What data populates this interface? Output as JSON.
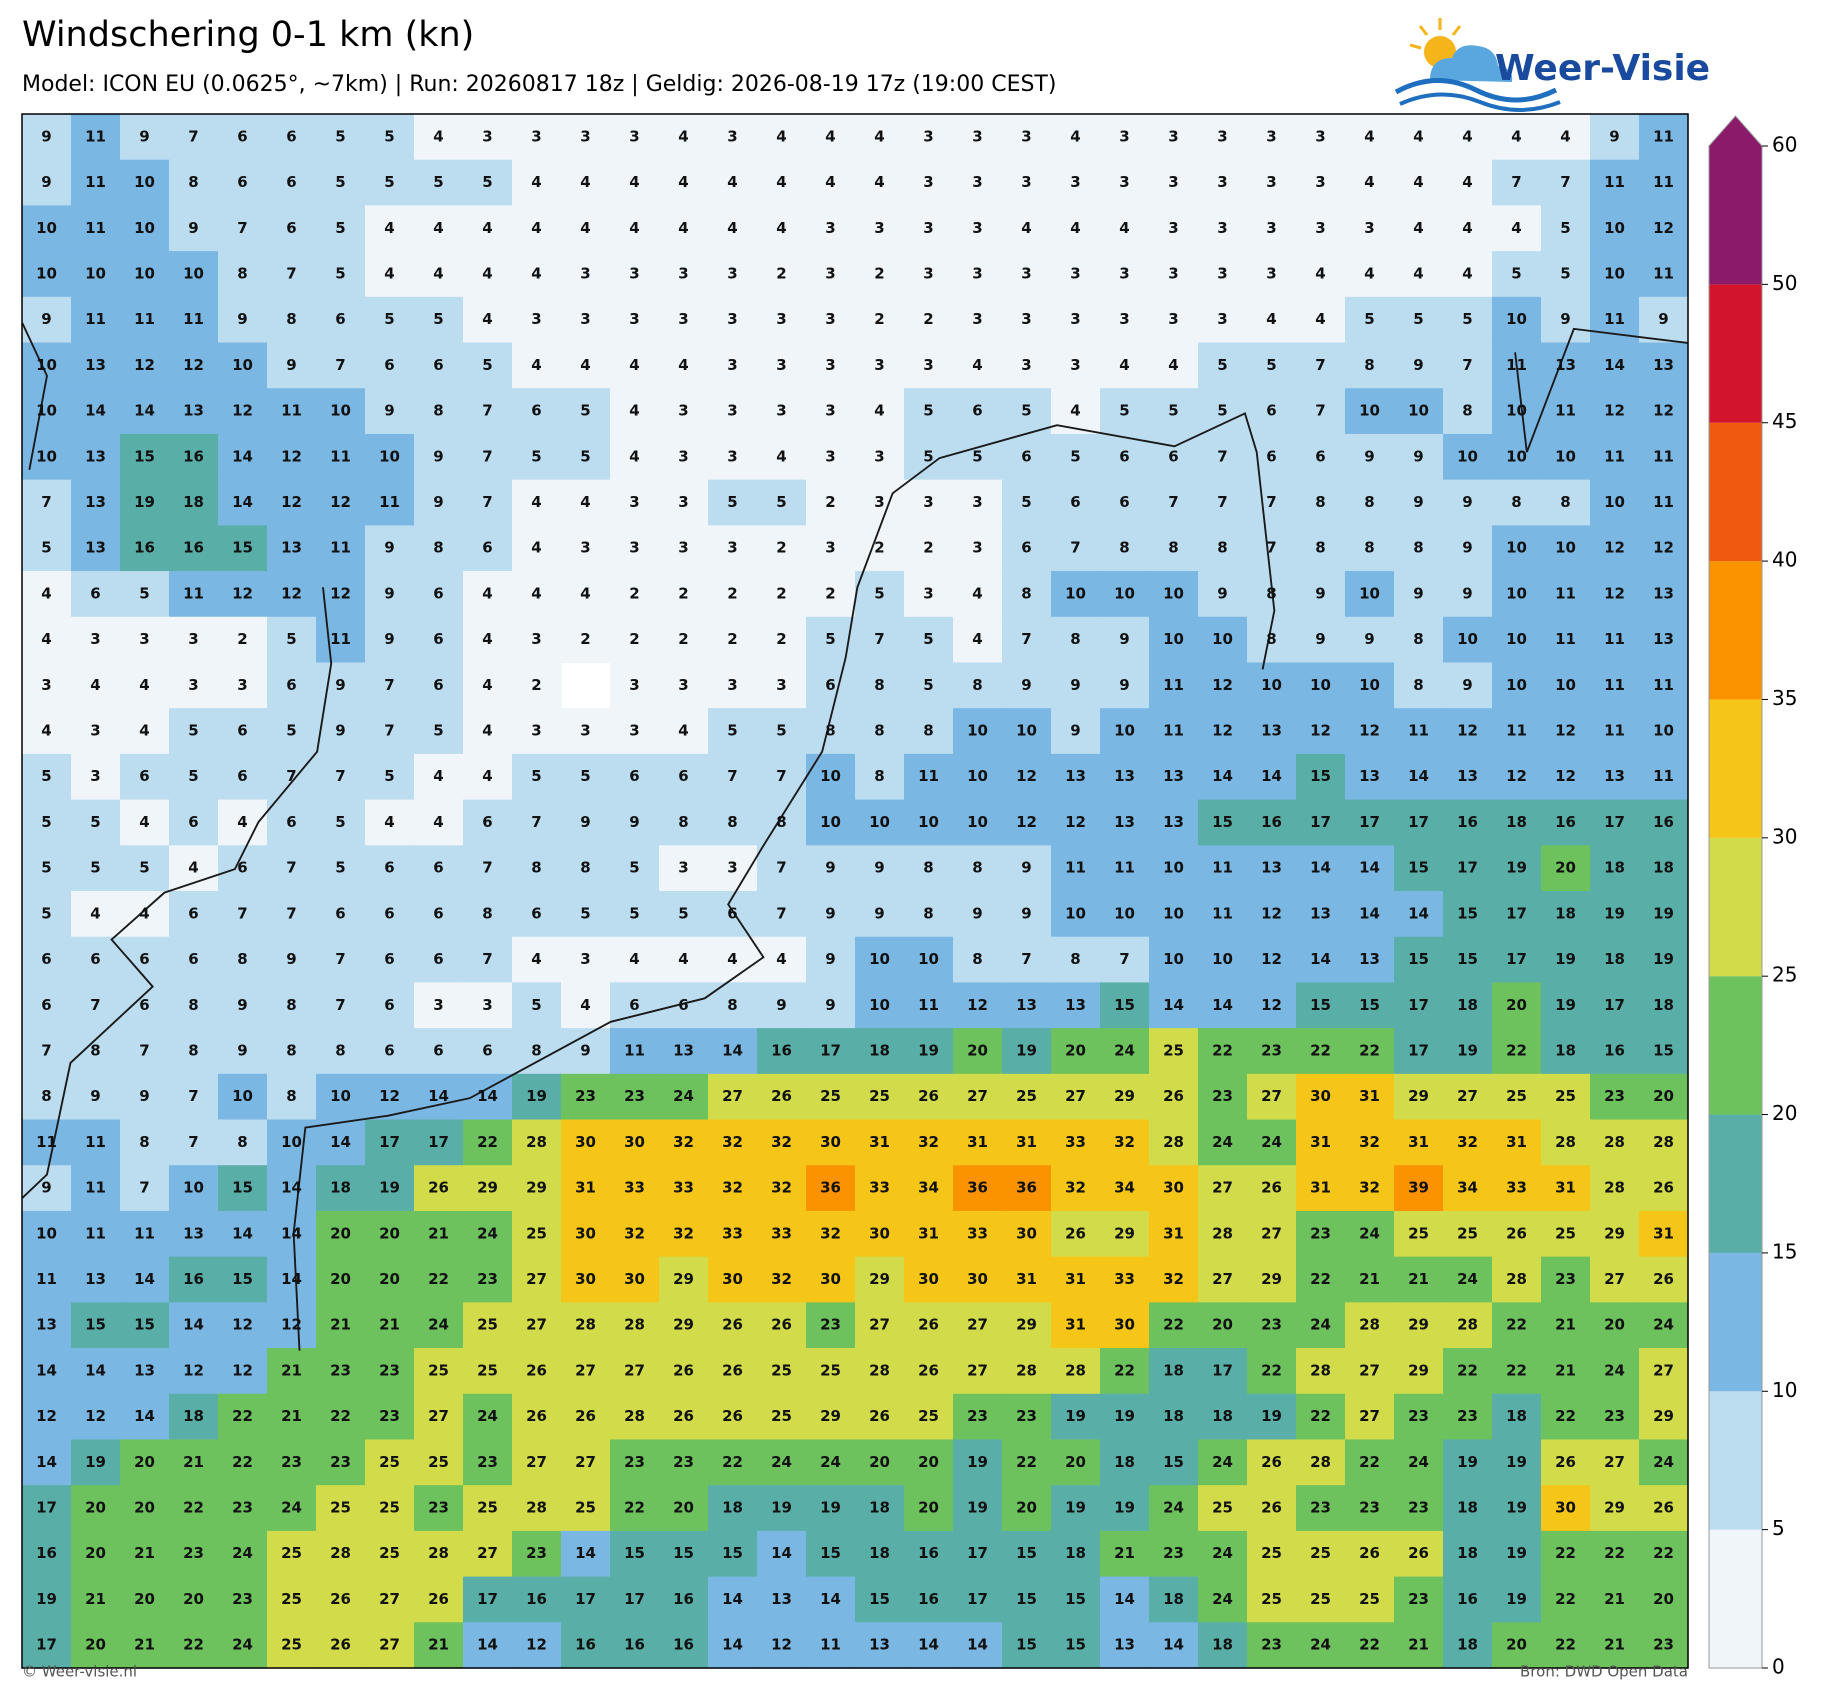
{
  "header": {
    "title": "Windschering 0-1 km (kn)",
    "subtitle": "Model: ICON EU (0.0625°, ~7km)  |  Run: 20260817 18z  |  Geldig: 2026-08-19 17z (19:00 CEST)",
    "logo": "Weer-Visie"
  },
  "footer": {
    "left": "© Weer-visie.nl",
    "right": "Bron: DWD Open Data"
  },
  "colorbar": {
    "levels": [
      0,
      5,
      10,
      15,
      20,
      25,
      30,
      35,
      40,
      45,
      50,
      60
    ],
    "colors": [
      "#f0f5fa",
      "#bcdcf0",
      "#7bb7e3",
      "#5aaea8",
      "#6ec25e",
      "#d2dc4a",
      "#f5c518",
      "#fb9200",
      "#f05a10",
      "#d2142d",
      "#8b1a6a"
    ]
  },
  "grid": {
    "rows": [
      [
        9,
        11,
        9,
        7,
        6,
        6,
        5,
        5,
        4,
        3,
        3,
        3,
        3,
        4,
        3,
        4,
        4,
        4,
        3,
        3,
        3,
        4,
        3,
        3,
        3,
        3,
        3,
        4,
        4,
        4,
        4,
        4,
        9,
        11
      ],
      [
        9,
        11,
        10,
        8,
        6,
        6,
        5,
        5,
        5,
        5,
        4,
        4,
        4,
        4,
        4,
        4,
        4,
        4,
        3,
        3,
        3,
        3,
        3,
        3,
        3,
        3,
        3,
        4,
        4,
        4,
        7,
        7,
        11,
        11
      ],
      [
        10,
        11,
        10,
        9,
        7,
        6,
        5,
        4,
        4,
        4,
        4,
        4,
        4,
        4,
        4,
        4,
        3,
        3,
        3,
        3,
        4,
        4,
        4,
        3,
        3,
        3,
        3,
        3,
        4,
        4,
        4,
        5,
        10,
        12
      ],
      [
        10,
        10,
        10,
        10,
        8,
        7,
        5,
        4,
        4,
        4,
        4,
        3,
        3,
        3,
        3,
        2,
        3,
        2,
        3,
        3,
        3,
        3,
        3,
        3,
        3,
        3,
        4,
        4,
        4,
        4,
        5,
        5,
        10,
        11
      ],
      [
        9,
        11,
        11,
        11,
        9,
        8,
        6,
        5,
        5,
        4,
        3,
        3,
        3,
        3,
        3,
        3,
        3,
        2,
        2,
        3,
        3,
        3,
        3,
        3,
        3,
        4,
        4,
        5,
        5,
        5,
        10,
        9,
        11,
        9
      ],
      [
        10,
        13,
        12,
        12,
        10,
        9,
        7,
        6,
        6,
        5,
        4,
        4,
        4,
        4,
        3,
        3,
        3,
        3,
        3,
        4,
        3,
        3,
        4,
        4,
        5,
        5,
        7,
        8,
        9,
        7,
        11,
        13,
        14,
        13
      ],
      [
        10,
        14,
        14,
        13,
        12,
        11,
        10,
        9,
        8,
        7,
        6,
        5,
        4,
        3,
        3,
        3,
        3,
        4,
        5,
        6,
        5,
        4,
        5,
        5,
        5,
        6,
        7,
        10,
        10,
        8,
        10,
        11,
        12,
        12
      ],
      [
        10,
        13,
        15,
        16,
        14,
        12,
        11,
        10,
        9,
        7,
        5,
        5,
        4,
        3,
        3,
        4,
        3,
        3,
        5,
        5,
        6,
        5,
        6,
        6,
        7,
        6,
        6,
        9,
        9,
        10,
        10,
        10,
        11,
        11
      ],
      [
        7,
        13,
        19,
        18,
        14,
        12,
        12,
        11,
        9,
        7,
        4,
        4,
        3,
        3,
        5,
        5,
        2,
        3,
        3,
        3,
        5,
        6,
        6,
        7,
        7,
        7,
        8,
        8,
        9,
        9,
        8,
        8,
        10,
        11
      ],
      [
        5,
        13,
        16,
        16,
        15,
        13,
        11,
        9,
        8,
        6,
        4,
        3,
        3,
        3,
        3,
        2,
        3,
        2,
        2,
        3,
        6,
        7,
        8,
        8,
        8,
        7,
        8,
        8,
        8,
        9,
        10,
        10,
        12,
        12
      ],
      [
        4,
        6,
        5,
        11,
        12,
        12,
        12,
        9,
        6,
        4,
        4,
        4,
        2,
        2,
        2,
        2,
        2,
        5,
        3,
        4,
        8,
        10,
        10,
        10,
        9,
        8,
        9,
        10,
        9,
        9,
        10,
        11,
        12,
        13
      ],
      [
        4,
        3,
        3,
        3,
        2,
        5,
        11,
        9,
        6,
        4,
        3,
        2,
        2,
        2,
        2,
        2,
        5,
        7,
        5,
        4,
        7,
        8,
        9,
        10,
        10,
        8,
        9,
        9,
        8,
        10,
        10,
        11,
        11,
        13
      ],
      [
        3,
        4,
        4,
        3,
        3,
        6,
        9,
        7,
        6,
        4,
        2,
        null,
        3,
        3,
        3,
        3,
        6,
        8,
        5,
        8,
        9,
        9,
        9,
        11,
        12,
        10,
        10,
        10,
        8,
        9,
        10,
        10,
        11,
        11
      ],
      [
        4,
        3,
        4,
        5,
        6,
        5,
        9,
        7,
        5,
        4,
        3,
        3,
        3,
        4,
        5,
        5,
        8,
        8,
        8,
        10,
        10,
        9,
        10,
        11,
        12,
        13,
        12,
        12,
        11,
        12,
        11,
        12,
        11,
        10
      ],
      [
        5,
        3,
        6,
        5,
        6,
        7,
        7,
        5,
        4,
        4,
        5,
        5,
        6,
        6,
        7,
        7,
        10,
        8,
        11,
        10,
        12,
        13,
        13,
        13,
        14,
        14,
        15,
        13,
        14,
        13,
        12,
        12,
        13,
        11
      ],
      [
        5,
        5,
        4,
        6,
        4,
        6,
        5,
        4,
        4,
        6,
        7,
        9,
        9,
        8,
        8,
        8,
        10,
        10,
        10,
        10,
        12,
        12,
        13,
        13,
        15,
        16,
        17,
        17,
        17,
        16,
        18,
        16,
        17,
        16
      ],
      [
        5,
        5,
        5,
        4,
        6,
        7,
        5,
        6,
        6,
        7,
        8,
        8,
        5,
        3,
        3,
        7,
        9,
        9,
        8,
        8,
        9,
        11,
        11,
        10,
        11,
        13,
        14,
        14,
        15,
        17,
        19,
        20,
        18,
        18
      ],
      [
        5,
        4,
        4,
        6,
        7,
        7,
        6,
        6,
        6,
        8,
        6,
        5,
        5,
        5,
        6,
        7,
        9,
        9,
        8,
        9,
        9,
        10,
        10,
        10,
        11,
        12,
        13,
        14,
        14,
        15,
        17,
        18,
        19,
        19
      ],
      [
        6,
        6,
        6,
        6,
        8,
        9,
        7,
        6,
        6,
        7,
        4,
        3,
        4,
        4,
        4,
        4,
        9,
        10,
        10,
        8,
        7,
        8,
        7,
        10,
        10,
        12,
        14,
        13,
        15,
        15,
        17,
        19,
        18,
        19
      ],
      [
        6,
        7,
        6,
        8,
        9,
        8,
        7,
        6,
        3,
        3,
        5,
        4,
        6,
        6,
        8,
        9,
        9,
        10,
        11,
        12,
        13,
        13,
        15,
        14,
        14,
        12,
        15,
        15,
        17,
        18,
        20,
        19,
        17,
        18
      ],
      [
        7,
        8,
        7,
        8,
        9,
        8,
        8,
        6,
        6,
        6,
        8,
        9,
        11,
        13,
        14,
        16,
        17,
        18,
        19,
        20,
        19,
        20,
        24,
        25,
        22,
        23,
        22,
        22,
        17,
        19,
        22,
        18,
        16,
        15
      ],
      [
        8,
        9,
        9,
        7,
        10,
        8,
        10,
        12,
        14,
        14,
        19,
        23,
        23,
        24,
        27,
        26,
        25,
        25,
        26,
        27,
        25,
        27,
        29,
        26,
        23,
        27,
        30,
        31,
        29,
        27,
        25,
        25,
        23,
        20
      ],
      [
        11,
        11,
        8,
        7,
        8,
        10,
        14,
        17,
        17,
        22,
        28,
        30,
        30,
        32,
        32,
        32,
        30,
        31,
        32,
        31,
        31,
        33,
        32,
        28,
        24,
        24,
        31,
        32,
        31,
        32,
        31,
        28,
        28,
        28
      ],
      [
        9,
        11,
        7,
        10,
        15,
        14,
        18,
        19,
        26,
        29,
        29,
        31,
        33,
        33,
        32,
        32,
        36,
        33,
        34,
        36,
        36,
        32,
        34,
        30,
        27,
        26,
        31,
        32,
        39,
        34,
        33,
        31,
        28,
        26
      ],
      [
        10,
        11,
        11,
        13,
        14,
        14,
        20,
        20,
        21,
        24,
        25,
        30,
        32,
        32,
        33,
        33,
        32,
        30,
        31,
        33,
        30,
        26,
        29,
        31,
        28,
        27,
        23,
        24,
        25,
        25,
        26,
        25,
        29,
        31
      ],
      [
        11,
        13,
        14,
        16,
        15,
        14,
        20,
        20,
        22,
        23,
        27,
        30,
        30,
        29,
        30,
        32,
        30,
        29,
        30,
        30,
        31,
        31,
        33,
        32,
        27,
        29,
        22,
        21,
        21,
        24,
        28,
        23,
        27,
        26
      ],
      [
        13,
        15,
        15,
        14,
        12,
        12,
        21,
        21,
        24,
        25,
        27,
        28,
        28,
        29,
        26,
        26,
        23,
        27,
        26,
        27,
        29,
        31,
        30,
        22,
        20,
        23,
        24,
        28,
        29,
        28,
        22,
        21,
        20,
        24
      ],
      [
        14,
        14,
        13,
        12,
        12,
        21,
        23,
        23,
        25,
        25,
        26,
        27,
        27,
        26,
        26,
        25,
        25,
        28,
        26,
        27,
        28,
        28,
        22,
        18,
        17,
        22,
        28,
        27,
        29,
        22,
        22,
        21,
        24,
        27
      ],
      [
        12,
        12,
        14,
        18,
        22,
        21,
        22,
        23,
        27,
        24,
        26,
        26,
        28,
        26,
        26,
        25,
        29,
        26,
        25,
        23,
        23,
        19,
        19,
        18,
        18,
        19,
        22,
        27,
        23,
        23,
        18,
        22,
        23,
        29
      ],
      [
        14,
        19,
        20,
        21,
        22,
        23,
        23,
        25,
        25,
        23,
        27,
        27,
        23,
        23,
        22,
        24,
        24,
        20,
        20,
        19,
        22,
        20,
        18,
        15,
        24,
        26,
        28,
        22,
        24,
        19,
        19,
        26,
        27,
        24
      ],
      [
        17,
        20,
        20,
        22,
        23,
        24,
        25,
        25,
        23,
        25,
        28,
        25,
        22,
        20,
        18,
        19,
        19,
        18,
        20,
        19,
        20,
        19,
        19,
        24,
        25,
        26,
        23,
        23,
        23,
        18,
        19,
        30,
        29,
        26
      ],
      [
        16,
        20,
        21,
        23,
        24,
        25,
        28,
        25,
        28,
        27,
        23,
        14,
        15,
        15,
        15,
        14,
        15,
        18,
        16,
        17,
        15,
        18,
        21,
        23,
        24,
        25,
        25,
        26,
        26,
        18,
        19,
        22,
        22,
        22
      ],
      [
        19,
        21,
        20,
        20,
        23,
        25,
        26,
        27,
        26,
        17,
        16,
        17,
        17,
        16,
        14,
        13,
        14,
        15,
        16,
        17,
        15,
        15,
        14,
        18,
        24,
        25,
        25,
        25,
        23,
        16,
        19,
        22,
        21,
        20
      ],
      [
        17,
        20,
        21,
        22,
        24,
        25,
        26,
        27,
        21,
        14,
        12,
        16,
        16,
        16,
        14,
        12,
        11,
        13,
        14,
        14,
        15,
        15,
        13,
        14,
        18,
        23,
        24,
        22,
        21,
        18,
        20,
        22,
        21,
        23
      ]
    ]
  }
}
